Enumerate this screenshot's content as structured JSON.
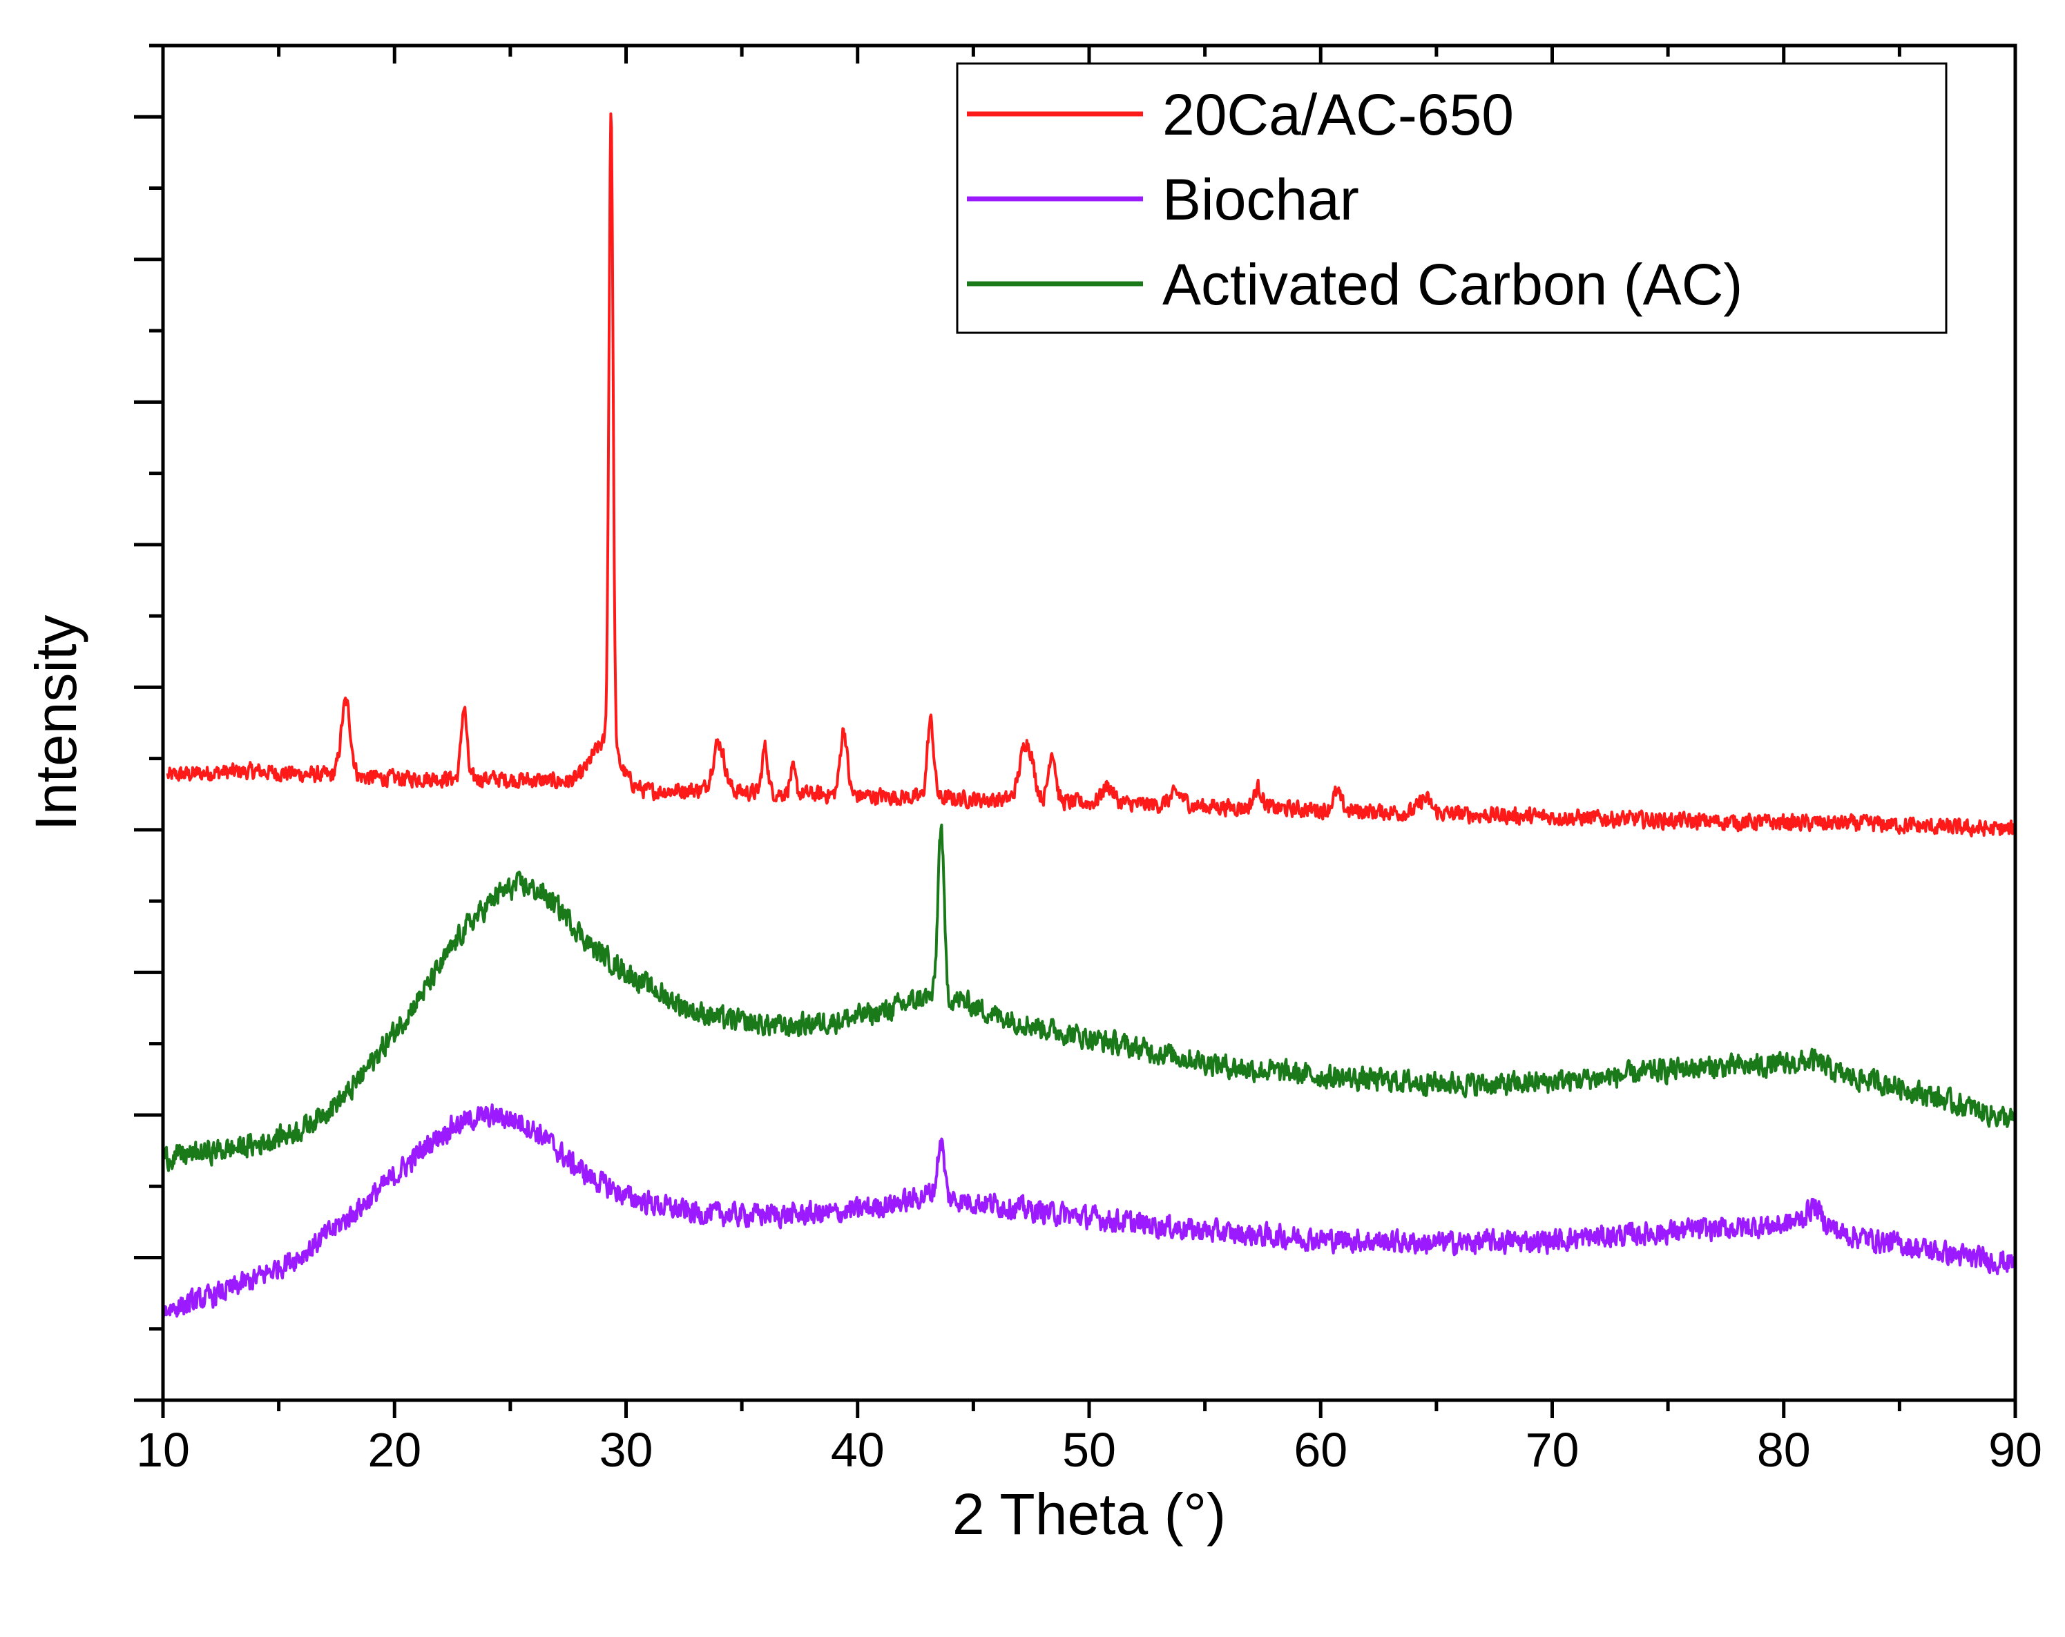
{
  "chart_data": {
    "type": "line",
    "title": "",
    "xlabel": "2 Theta (°)",
    "ylabel": "Intensity",
    "xlim": [
      10,
      90
    ],
    "ylim": [
      0,
      950
    ],
    "xticks": [
      10,
      20,
      30,
      40,
      50,
      60,
      70,
      80,
      90
    ],
    "y_tick_labels_shown": false,
    "legend_position": "top-right",
    "series": [
      {
        "name": "20Ca/AC-650",
        "color": "#ff1a1a",
        "noise": 5,
        "baseline": [
          [
            10.2,
            438
          ],
          [
            12,
            440
          ],
          [
            14,
            441
          ],
          [
            16,
            439
          ],
          [
            20,
            436
          ],
          [
            24,
            436
          ],
          [
            27,
            434
          ],
          [
            28.5,
            432
          ],
          [
            31,
            427
          ],
          [
            33,
            428
          ],
          [
            36,
            426
          ],
          [
            40,
            424
          ],
          [
            44,
            422
          ],
          [
            48,
            420
          ],
          [
            52,
            418
          ],
          [
            56,
            416
          ],
          [
            60,
            414
          ],
          [
            64,
            412
          ],
          [
            68,
            410
          ],
          [
            72,
            408
          ],
          [
            76,
            406
          ],
          [
            80,
            405
          ],
          [
            84,
            404
          ],
          [
            88,
            401
          ],
          [
            90,
            400
          ]
        ],
        "peaks": [
          [
            17.9,
            52,
            0.2
          ],
          [
            23.0,
            50,
            0.12
          ],
          [
            29.1,
            30,
            0.6
          ],
          [
            29.35,
            448,
            0.09
          ],
          [
            34.0,
            34,
            0.25
          ],
          [
            36.0,
            32,
            0.12
          ],
          [
            37.2,
            16,
            0.12
          ],
          [
            39.4,
            46,
            0.15
          ],
          [
            43.15,
            54,
            0.14
          ],
          [
            47.3,
            42,
            0.28
          ],
          [
            48.4,
            36,
            0.15
          ],
          [
            50.8,
            12,
            0.25
          ],
          [
            53.8,
            8,
            0.3
          ],
          [
            57.3,
            14,
            0.18
          ],
          [
            60.7,
            12,
            0.18
          ],
          [
            64.5,
            10,
            0.25
          ]
        ]
      },
      {
        "name": "Biochar",
        "color": "#9b1aff",
        "noise": 7,
        "baseline": [
          [
            10,
            63
          ],
          [
            12,
            72
          ],
          [
            14,
            85
          ],
          [
            16,
            102
          ],
          [
            18,
            128
          ],
          [
            20,
            157
          ],
          [
            21.5,
            180
          ],
          [
            22.5,
            192
          ],
          [
            23.5,
            198
          ],
          [
            24.5,
            199
          ],
          [
            25.5,
            195
          ],
          [
            26.5,
            184
          ],
          [
            27.5,
            168
          ],
          [
            28.5,
            156
          ],
          [
            30,
            143
          ],
          [
            31.5,
            136
          ],
          [
            33,
            131
          ],
          [
            35,
            130
          ],
          [
            37,
            130
          ],
          [
            39,
            131
          ],
          [
            41,
            136
          ],
          [
            42.5,
            141
          ],
          [
            43.2,
            146
          ],
          [
            44,
            141
          ],
          [
            46,
            137
          ],
          [
            48,
            132
          ],
          [
            52,
            124
          ],
          [
            56,
            117
          ],
          [
            60,
            113
          ],
          [
            65,
            110
          ],
          [
            70,
            112
          ],
          [
            75,
            118
          ],
          [
            78,
            121
          ],
          [
            80,
            123
          ],
          [
            81.3,
            128
          ],
          [
            82.5,
            117
          ],
          [
            85,
            109
          ],
          [
            88,
            100
          ],
          [
            90,
            96
          ]
        ],
        "peaks": [
          [
            43.6,
            38,
            0.14
          ],
          [
            81.3,
            8,
            0.3
          ]
        ]
      },
      {
        "name": "Activated Carbon (AC)",
        "color": "#1a7a1a",
        "noise": 7,
        "baseline": [
          [
            10,
            170
          ],
          [
            12,
            174
          ],
          [
            14,
            179
          ],
          [
            16,
            190
          ],
          [
            18,
            215
          ],
          [
            20,
            258
          ],
          [
            21.5,
            292
          ],
          [
            23,
            330
          ],
          [
            24.5,
            355
          ],
          [
            25.5,
            362
          ],
          [
            26.5,
            354
          ],
          [
            27.5,
            338
          ],
          [
            28.5,
            318
          ],
          [
            30,
            300
          ],
          [
            31.5,
            285
          ],
          [
            33,
            272
          ],
          [
            35,
            265
          ],
          [
            37,
            262
          ],
          [
            39,
            266
          ],
          [
            41,
            272
          ],
          [
            43,
            283
          ],
          [
            44.5,
            280
          ],
          [
            46,
            270
          ],
          [
            48,
            261
          ],
          [
            52,
            247
          ],
          [
            56,
            234
          ],
          [
            60,
            227
          ],
          [
            64,
            223
          ],
          [
            68,
            221
          ],
          [
            72,
            226
          ],
          [
            76,
            233
          ],
          [
            80,
            235
          ],
          [
            81.3,
            238
          ],
          [
            82.5,
            228
          ],
          [
            85,
            220
          ],
          [
            88,
            205
          ],
          [
            90,
            196
          ]
        ],
        "peaks": [
          [
            43.6,
            120,
            0.13
          ]
        ]
      }
    ]
  }
}
